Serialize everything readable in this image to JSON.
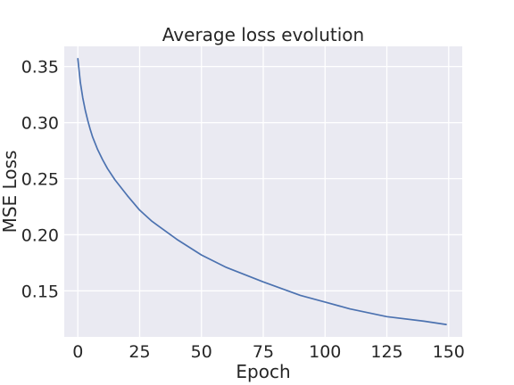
{
  "chart_data": {
    "type": "line",
    "title": "Average loss evolution",
    "xlabel": "Epoch",
    "ylabel": "MSE Loss",
    "xlim": [
      -5.5,
      155.5
    ],
    "ylim": [
      0.109,
      0.368
    ],
    "xticks": [
      0,
      25,
      50,
      75,
      100,
      125,
      150
    ],
    "yticks": [
      0.15,
      0.2,
      0.25,
      0.3,
      0.35
    ],
    "ytick_labels": [
      "0.15",
      "0.20",
      "0.25",
      "0.30",
      "0.35"
    ],
    "grid": true,
    "series": [
      {
        "color": "#4c72b0",
        "x": [
          0,
          1,
          2,
          3,
          4,
          5,
          6,
          8,
          10,
          12,
          15,
          20,
          25,
          30,
          40,
          50,
          60,
          75,
          90,
          100,
          110,
          125,
          140,
          149
        ],
        "y": [
          0.357,
          0.336,
          0.322,
          0.311,
          0.302,
          0.294,
          0.287,
          0.276,
          0.267,
          0.259,
          0.249,
          0.235,
          0.222,
          0.212,
          0.196,
          0.182,
          0.171,
          0.158,
          0.146,
          0.14,
          0.134,
          0.127,
          0.123,
          0.12
        ]
      }
    ]
  },
  "style": {
    "plot_bg": "#eaeaf2",
    "grid_color": "#ffffff",
    "line_color": "#4c72b0",
    "text_color": "#262626"
  }
}
